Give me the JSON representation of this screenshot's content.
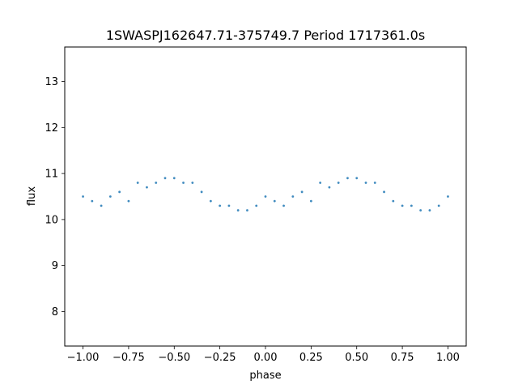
{
  "chart_data": {
    "type": "scatter",
    "title": "1SWASPJ162647.71-375749.7 Period 1717361.0s",
    "xlabel": "phase",
    "ylabel": "flux",
    "xlim": [
      -1.1,
      1.1
    ],
    "ylim": [
      7.25,
      13.75
    ],
    "xticks": [
      -1.0,
      -0.75,
      -0.5,
      -0.25,
      0.0,
      0.25,
      0.5,
      0.75,
      1.0
    ],
    "xtick_labels": [
      "−1.00",
      "−0.75",
      "−0.50",
      "−0.25",
      "0.00",
      "0.25",
      "0.50",
      "0.75",
      "1.00"
    ],
    "yticks": [
      8,
      9,
      10,
      11,
      12,
      13
    ],
    "ytick_labels": [
      "8",
      "9",
      "10",
      "11",
      "12",
      "13"
    ],
    "grid": false,
    "marker_color": "#1f77b4",
    "series": [
      {
        "x": [
          -1.0,
          -0.95,
          -0.9,
          -0.85,
          -0.8,
          -0.75,
          -0.7,
          -0.65,
          -0.6,
          -0.55,
          -0.5,
          -0.45,
          -0.4,
          -0.35,
          -0.3,
          -0.25,
          -0.2,
          -0.15,
          -0.1,
          -0.05,
          0.0,
          0.05,
          0.1,
          0.15,
          0.2,
          0.25,
          0.3,
          0.35,
          0.4,
          0.45,
          0.5,
          0.55,
          0.6,
          0.65,
          0.7,
          0.75,
          0.8,
          0.85,
          0.9,
          0.95,
          1.0
        ],
        "y": [
          10.5,
          10.4,
          10.3,
          10.5,
          10.6,
          10.4,
          10.8,
          10.7,
          10.8,
          10.9,
          10.9,
          10.8,
          10.8,
          10.6,
          10.4,
          10.3,
          10.3,
          10.2,
          10.2,
          10.3,
          10.5,
          10.4,
          10.3,
          10.5,
          10.6,
          10.4,
          10.8,
          10.7,
          10.8,
          10.9,
          10.9,
          10.8,
          10.8,
          10.6,
          10.4,
          10.3,
          10.3,
          10.2,
          10.2,
          10.3,
          10.5
        ]
      }
    ]
  }
}
